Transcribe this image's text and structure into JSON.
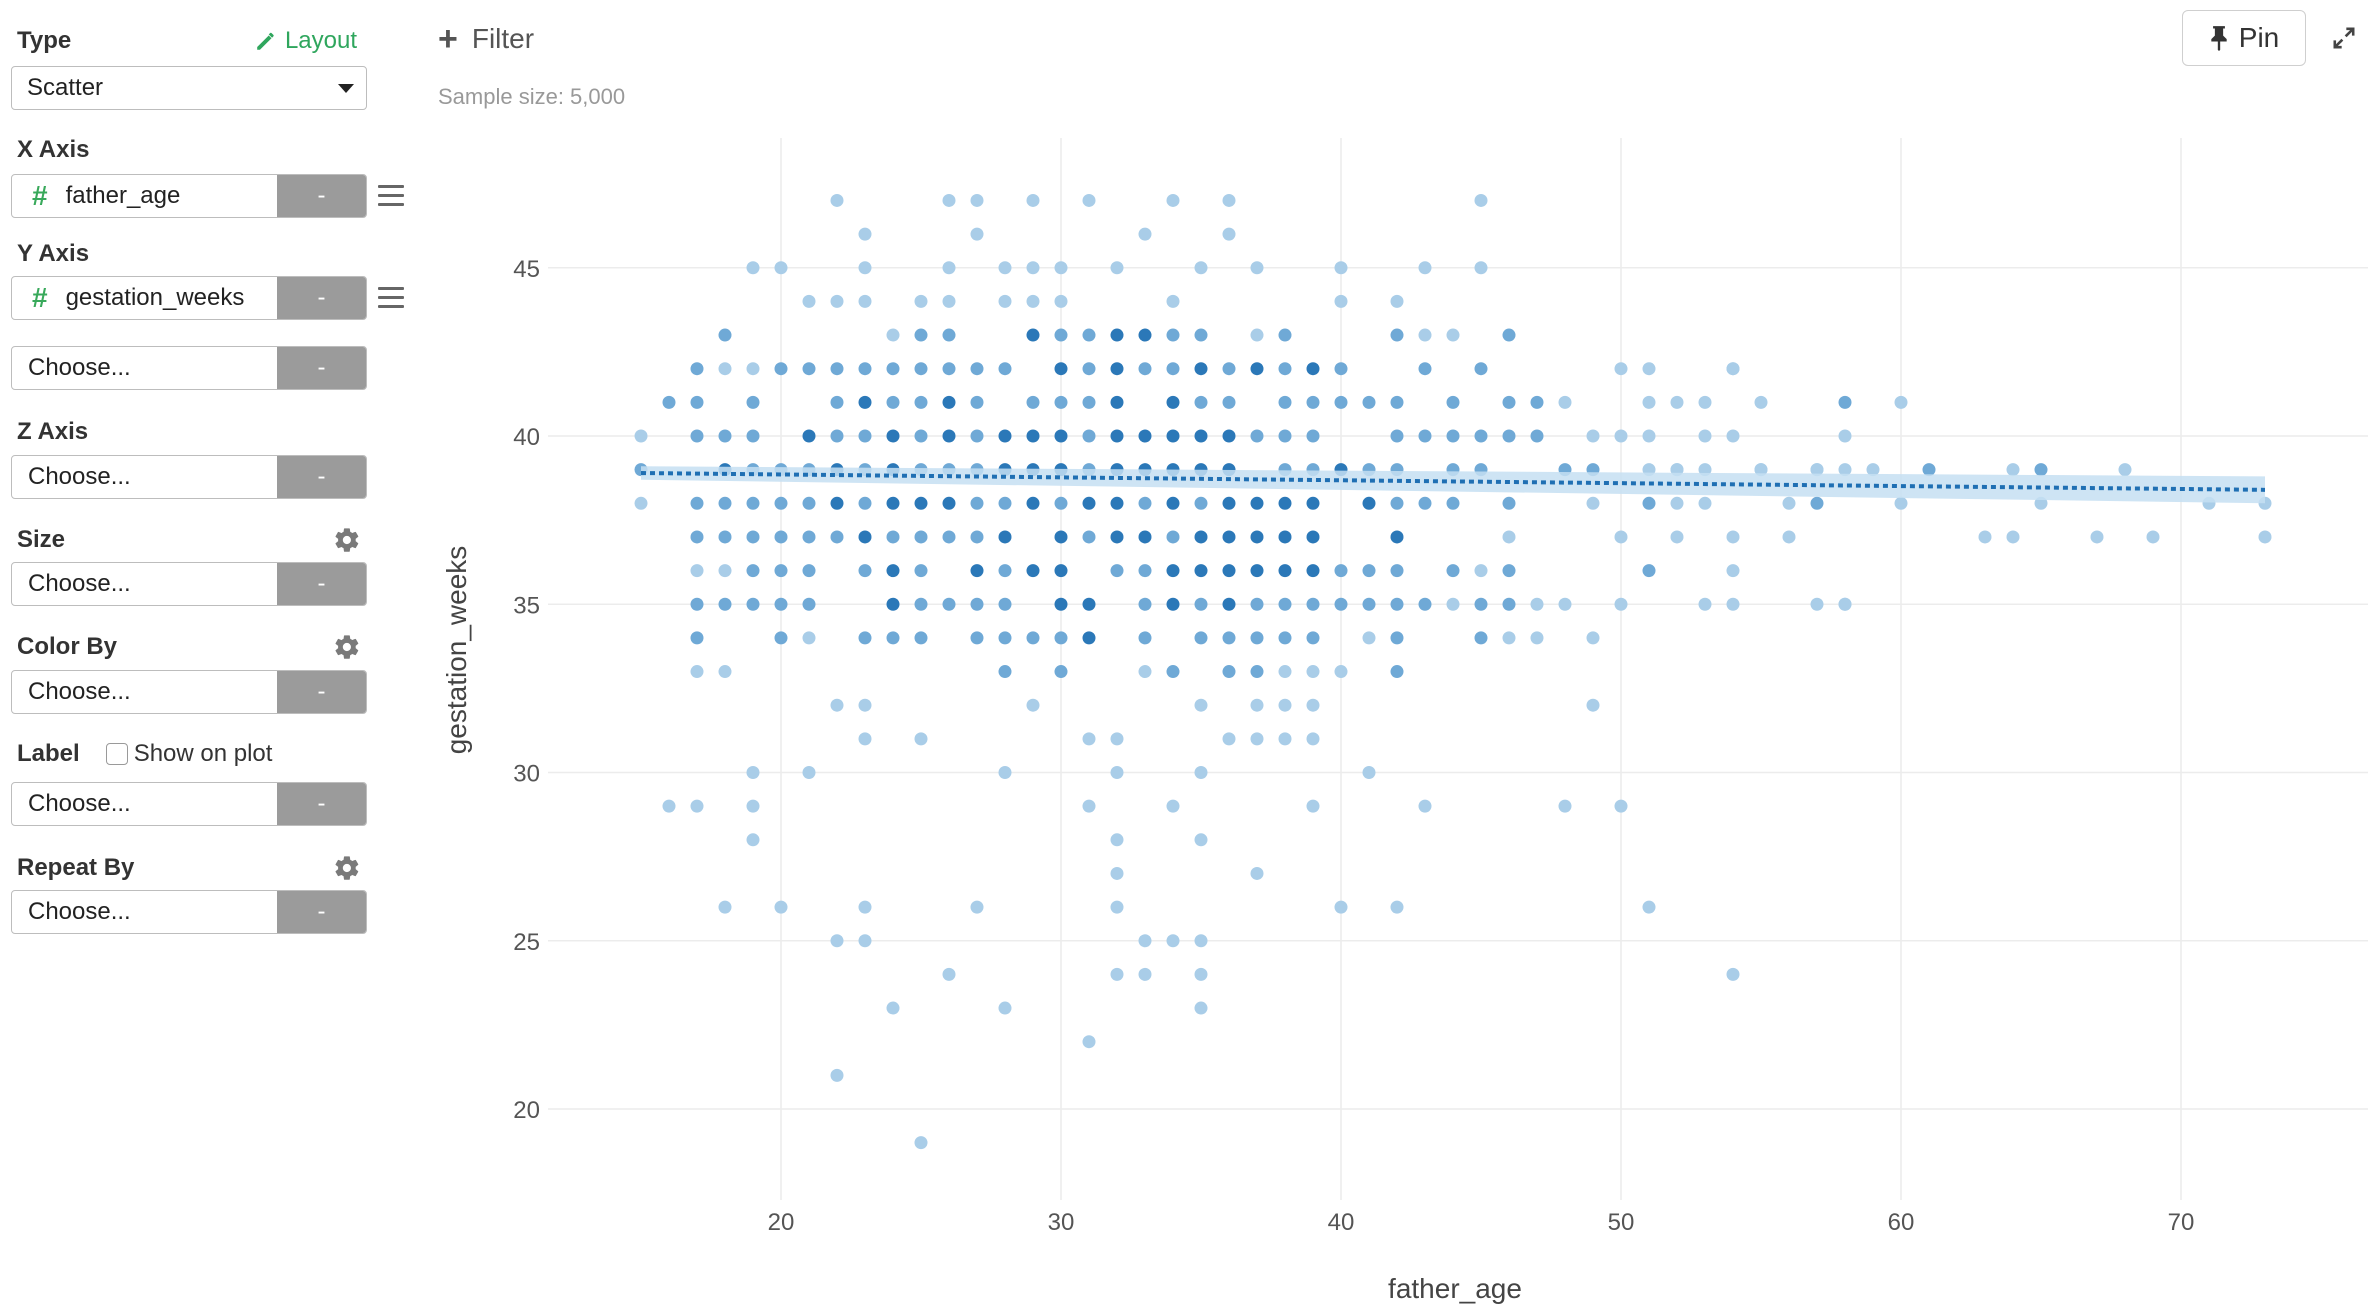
{
  "sidebar": {
    "type_label": "Type",
    "layout_link": "Layout",
    "type_value": "Scatter",
    "x_axis_label": "X Axis",
    "x_axis_value": "father_age",
    "y_axis_label": "Y Axis",
    "y_axis_value": "gestation_weeks",
    "y_axis_extra_value": "Choose...",
    "z_axis_label": "Z Axis",
    "z_axis_value": "Choose...",
    "size_label": "Size",
    "size_value": "Choose...",
    "color_label": "Color By",
    "color_value": "Choose...",
    "label_label": "Label",
    "show_on_plot": "Show on plot",
    "label_value": "Choose...",
    "repeat_label": "Repeat By",
    "repeat_value": "Choose...",
    "field_button": "-",
    "type_glyph": "#"
  },
  "topbar": {
    "filter_label": "Filter",
    "sample_size": "Sample size: 5,000",
    "pin_label": "Pin"
  },
  "colors": {
    "accent_green": "#2fa65d",
    "point_light": "#a9cde8",
    "point_mid": "#6fa9d6",
    "point_dark": "#2b78b8",
    "trend_line": "#1f6fb3",
    "trend_band": "#c6dff2"
  },
  "chart_data": {
    "type": "scatter",
    "xlabel": "father_age",
    "ylabel": "gestation_weeks",
    "xlim": [
      12,
      76
    ],
    "ylim": [
      18,
      49
    ],
    "x_ticks": [
      20,
      30,
      40,
      50,
      60,
      70
    ],
    "y_ticks": [
      20,
      25,
      30,
      35,
      40,
      45
    ],
    "grid": true,
    "trend_line": {
      "x": [
        15,
        73
      ],
      "y": [
        38.9,
        38.4
      ],
      "band_y_start": [
        38.7,
        39.1
      ],
      "band_y_end": [
        38.0,
        38.8
      ]
    },
    "dense_rows": [
      {
        "y": 45,
        "x_range": [
          19,
          45
        ],
        "density": 0.45
      },
      {
        "y": 44,
        "x_range": [
          21,
          42
        ],
        "density": 0.5
      },
      {
        "y": 43,
        "x_range": [
          18,
          46
        ],
        "density": 0.75
      },
      {
        "y": 42,
        "x_range": [
          17,
          54
        ],
        "density": 0.88
      },
      {
        "y": 41,
        "x_range": [
          16,
          60
        ],
        "density": 0.95
      },
      {
        "y": 40,
        "x_range": [
          15,
          58
        ],
        "density": 1.0
      },
      {
        "y": 39,
        "x_range": [
          15,
          68
        ],
        "density": 1.0
      },
      {
        "y": 38,
        "x_range": [
          15,
          73
        ],
        "density": 1.0
      },
      {
        "y": 37,
        "x_range": [
          17,
          73
        ],
        "density": 0.95
      },
      {
        "y": 36,
        "x_range": [
          17,
          51
        ],
        "density": 0.9
      },
      {
        "y": 35,
        "x_range": [
          17,
          58
        ],
        "density": 0.9
      },
      {
        "y": 34,
        "x_range": [
          17,
          49
        ],
        "density": 0.78
      },
      {
        "y": 33,
        "x_range": [
          17,
          42
        ],
        "density": 0.65
      },
      {
        "y": 32,
        "x_range": [
          22,
          49
        ],
        "density": 0.35
      },
      {
        "y": 31,
        "x_range": [
          23,
          39
        ],
        "density": 0.25
      },
      {
        "y": 30,
        "x_range": [
          19,
          41
        ],
        "density": 0.3
      },
      {
        "y": 29,
        "x_range": [
          16,
          50
        ],
        "density": 0.2
      },
      {
        "y": 28,
        "x_range": [
          19,
          35
        ],
        "density": 0.25
      }
    ],
    "sparse_points": [
      [
        22,
        47
      ],
      [
        26,
        47
      ],
      [
        27,
        47
      ],
      [
        29,
        47
      ],
      [
        31,
        47
      ],
      [
        34,
        47
      ],
      [
        36,
        47
      ],
      [
        45,
        47
      ],
      [
        23,
        46
      ],
      [
        27,
        46
      ],
      [
        33,
        46
      ],
      [
        36,
        46
      ],
      [
        32,
        27
      ],
      [
        37,
        27
      ],
      [
        18,
        26
      ],
      [
        20,
        26
      ],
      [
        23,
        26
      ],
      [
        27,
        26
      ],
      [
        32,
        26
      ],
      [
        40,
        26
      ],
      [
        42,
        26
      ],
      [
        51,
        26
      ],
      [
        22,
        25
      ],
      [
        23,
        25
      ],
      [
        33,
        25
      ],
      [
        34,
        25
      ],
      [
        35,
        25
      ],
      [
        26,
        24
      ],
      [
        32,
        24
      ],
      [
        33,
        24
      ],
      [
        35,
        24
      ],
      [
        54,
        24
      ],
      [
        24,
        23
      ],
      [
        28,
        23
      ],
      [
        35,
        23
      ],
      [
        31,
        22
      ],
      [
        22,
        21
      ],
      [
        25,
        19
      ],
      [
        54,
        35
      ],
      [
        58,
        35
      ],
      [
        54,
        36
      ],
      [
        55,
        39
      ],
      [
        57,
        39
      ],
      [
        53,
        39
      ],
      [
        52,
        39
      ],
      [
        50,
        42
      ],
      [
        51,
        42
      ],
      [
        54,
        42
      ]
    ]
  }
}
